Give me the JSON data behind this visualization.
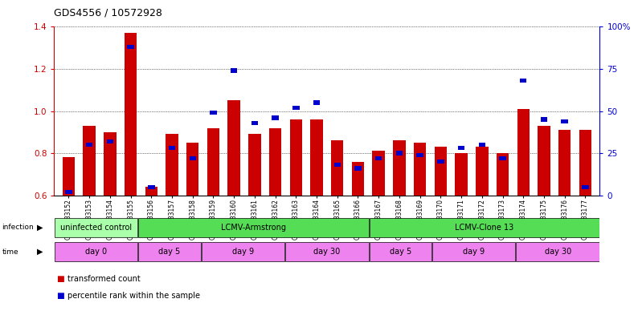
{
  "title": "GDS4556 / 10572928",
  "samples": [
    "GSM1083152",
    "GSM1083153",
    "GSM1083154",
    "GSM1083155",
    "GSM1083156",
    "GSM1083157",
    "GSM1083158",
    "GSM1083159",
    "GSM1083160",
    "GSM1083161",
    "GSM1083162",
    "GSM1083163",
    "GSM1083164",
    "GSM1083165",
    "GSM1083166",
    "GSM1083167",
    "GSM1083168",
    "GSM1083169",
    "GSM1083170",
    "GSM1083171",
    "GSM1083172",
    "GSM1083173",
    "GSM1083174",
    "GSM1083175",
    "GSM1083176",
    "GSM1083177"
  ],
  "red_values": [
    0.78,
    0.93,
    0.9,
    1.37,
    0.64,
    0.89,
    0.85,
    0.92,
    1.05,
    0.89,
    0.92,
    0.96,
    0.96,
    0.86,
    0.76,
    0.81,
    0.86,
    0.85,
    0.83,
    0.8,
    0.83,
    0.8,
    1.01,
    0.93,
    0.91,
    0.91
  ],
  "blue_values": [
    2,
    30,
    32,
    88,
    5,
    28,
    22,
    49,
    74,
    43,
    46,
    52,
    55,
    18,
    16,
    22,
    25,
    24,
    20,
    28,
    30,
    22,
    68,
    45,
    44,
    5
  ],
  "ylim_left": [
    0.6,
    1.4
  ],
  "ylim_right": [
    0,
    100
  ],
  "yticks_left": [
    0.6,
    0.8,
    1.0,
    1.2,
    1.4
  ],
  "yticks_right": [
    0,
    25,
    50,
    75,
    100
  ],
  "ytick_right_labels": [
    "0",
    "25",
    "50",
    "75",
    "100%"
  ],
  "bar_bottom": 0.6,
  "red_color": "#CC0000",
  "blue_color": "#0000CC",
  "label_color_red": "#CC0000",
  "label_color_blue": "#0000CC",
  "infection_groups": [
    {
      "label": "uninfected control",
      "start": 0,
      "end": 4,
      "color": "#AAFFAA"
    },
    {
      "label": "LCMV-Armstrong",
      "start": 4,
      "end": 15,
      "color": "#55DD55"
    },
    {
      "label": "LCMV-Clone 13",
      "start": 15,
      "end": 26,
      "color": "#55DD55"
    }
  ],
  "time_groups": [
    {
      "label": "day 0",
      "start": 0,
      "end": 4,
      "color": "#EE82EE"
    },
    {
      "label": "day 5",
      "start": 4,
      "end": 7,
      "color": "#EE82EE"
    },
    {
      "label": "day 9",
      "start": 7,
      "end": 11,
      "color": "#EE82EE"
    },
    {
      "label": "day 30",
      "start": 11,
      "end": 15,
      "color": "#EE82EE"
    },
    {
      "label": "day 5",
      "start": 15,
      "end": 18,
      "color": "#EE82EE"
    },
    {
      "label": "day 9",
      "start": 18,
      "end": 22,
      "color": "#EE82EE"
    },
    {
      "label": "day 30",
      "start": 22,
      "end": 26,
      "color": "#EE82EE"
    }
  ]
}
